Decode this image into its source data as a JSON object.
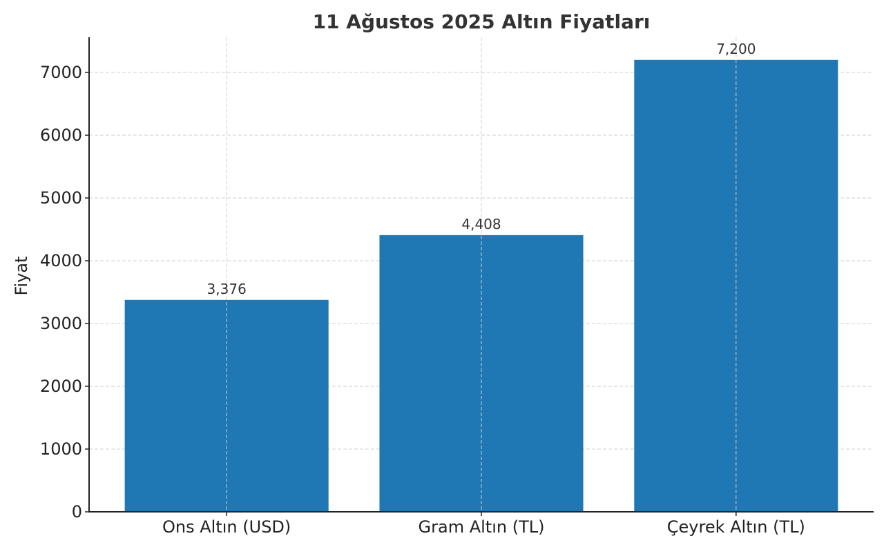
{
  "chart_data": {
    "type": "bar",
    "title": "11 Ağustos 2025 Altın Fiyatları",
    "xlabel": "",
    "ylabel": "Fiyat",
    "categories": [
      "Ons Altın (USD)",
      "Gram Altın (TL)",
      "Çeyrek Altın (TL)"
    ],
    "values": [
      3376,
      4408,
      7200
    ],
    "data_labels": [
      "3,376",
      "4,408",
      "7,200"
    ],
    "yticks": [
      0,
      1000,
      2000,
      3000,
      4000,
      5000,
      6000,
      7000
    ],
    "ylim": [
      0,
      7560
    ],
    "grid": true,
    "bar_color": "#1f77b4"
  }
}
